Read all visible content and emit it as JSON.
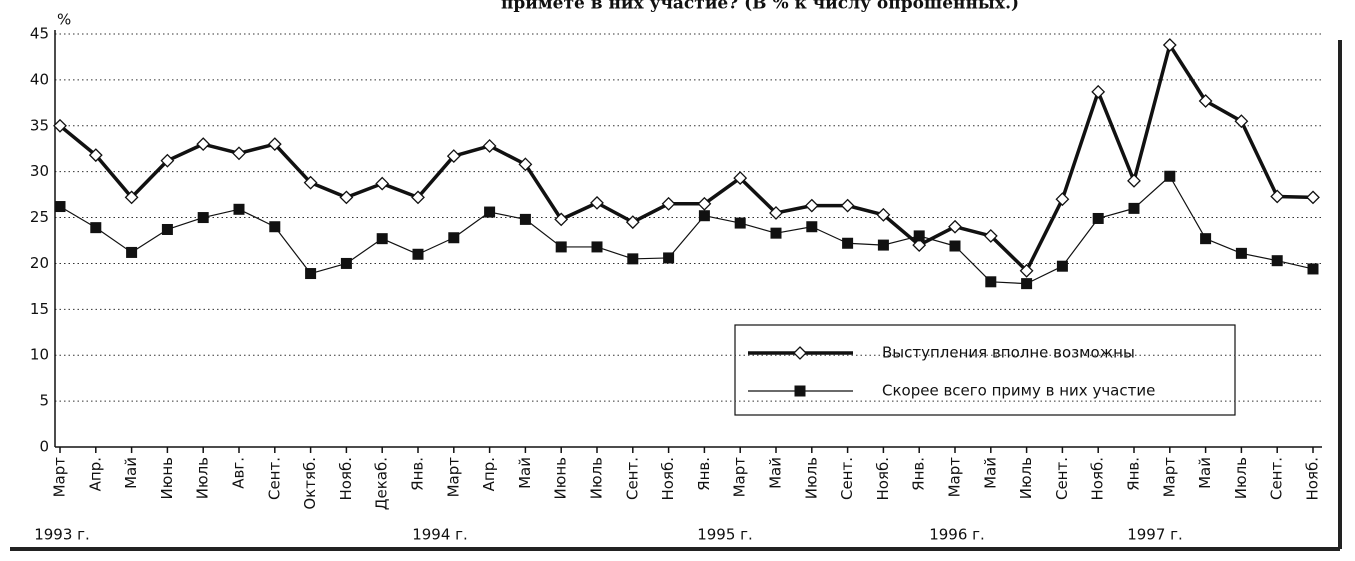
{
  "chart_data": {
    "type": "line",
    "title": "примете в них участие? (В % к числу опрошенных.)",
    "y_label": "%",
    "categories": [
      "Март",
      "Апр.",
      "Май",
      "Июнь",
      "Июль",
      "Авг.",
      "Сент.",
      "Октяб.",
      "Нояб.",
      "Декаб.",
      "Янв.",
      "Март",
      "Апр.",
      "Май",
      "Июнь",
      "Июль",
      "Сент.",
      "Нояб.",
      "Янв.",
      "Март",
      "Май",
      "Июль",
      "Сент.",
      "Нояб.",
      "Янв.",
      "Март",
      "Май",
      "Июль",
      "Сент.",
      "Нояб.",
      "Янв.",
      "Март",
      "Май",
      "Июль",
      "Сент.",
      "Нояб."
    ],
    "year_labels": [
      "1993 г.",
      "1994 г.",
      "1995 г.",
      "1996 г.",
      "1997 г."
    ],
    "series": [
      {
        "name": "Выступления вполне возможны",
        "color": "#111111",
        "marker": "diamond",
        "values": [
          35,
          31.8,
          27.2,
          31.2,
          33,
          32,
          33,
          28.8,
          27.2,
          28.7,
          27.2,
          31.7,
          32.8,
          30.8,
          24.8,
          26.6,
          24.5,
          26.5,
          26.5,
          29.3,
          25.5,
          26.3,
          26.3,
          25.3,
          22,
          24,
          23,
          19.2,
          27,
          38.7,
          29,
          43.8,
          37.7,
          35.5,
          27.3,
          27.2
        ]
      },
      {
        "name": "Скорее всего приму в них участие",
        "color": "#111111",
        "marker": "square",
        "values": [
          26.2,
          23.9,
          21.2,
          23.7,
          25,
          25.9,
          24,
          18.9,
          20,
          22.7,
          21,
          22.8,
          25.6,
          24.8,
          21.8,
          21.8,
          20.5,
          20.6,
          25.2,
          24.4,
          23.3,
          24,
          22.2,
          22,
          23,
          21.9,
          18,
          17.8,
          19.7,
          24.9,
          26,
          29.5,
          22.7,
          21.1,
          20.3,
          19.4
        ]
      }
    ],
    "ylim": [
      0,
      45
    ],
    "yticks": [
      0,
      5,
      10,
      15,
      20,
      25,
      30,
      35,
      40,
      45
    ],
    "grid": true
  }
}
